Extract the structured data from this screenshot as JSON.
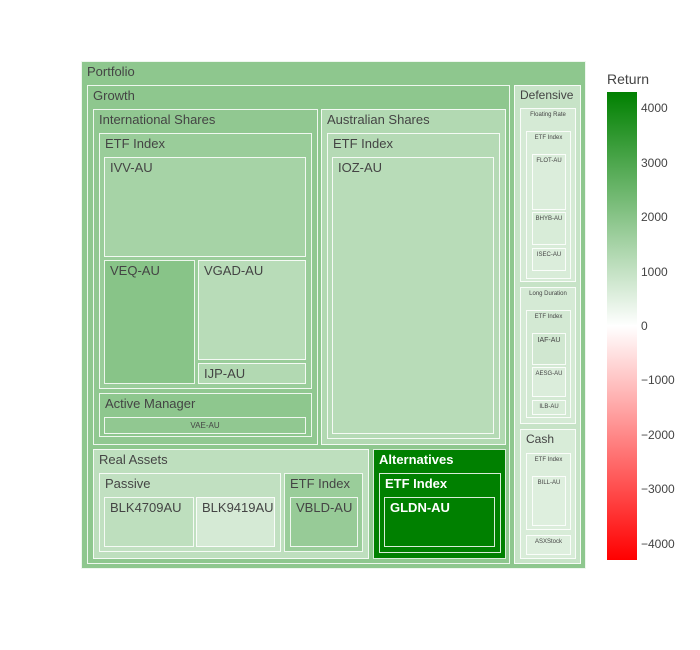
{
  "chart_data": {
    "type": "treemap",
    "colorbar": {
      "title": "Return",
      "range": [
        -4300,
        4300
      ],
      "ticks": [
        "4000",
        "3000",
        "2000",
        "1000",
        "0",
        "−1000",
        "−2000",
        "−3000",
        "−4000"
      ],
      "tick_values": [
        4000,
        3000,
        2000,
        1000,
        0,
        -1000,
        -2000,
        -3000,
        -4000
      ],
      "colors": {
        "high": "#008000",
        "mid": "#ffffff",
        "low": "#ff0000"
      }
    },
    "tree": {
      "label": "Portfolio",
      "return": 1900,
      "children": [
        {
          "label": "Growth",
          "return": 1900,
          "children": [
            {
              "label": "International Shares",
              "return": 1850,
              "children": [
                {
                  "label": "ETF Index",
                  "return": 1700,
                  "children": [
                    {
                      "label": "IVV-AU",
                      "return": 1500
                    },
                    {
                      "label": "VEQ-AU",
                      "return": 2000
                    },
                    {
                      "label": "VGAD-AU",
                      "return": 1200
                    },
                    {
                      "label": "IJP-AU",
                      "return": 1300
                    }
                  ]
                },
                {
                  "label": "Active Manager",
                  "return": 1900,
                  "children": [
                    {
                      "label": "VAE-AU",
                      "return": 1850
                    }
                  ]
                }
              ]
            },
            {
              "label": "Australian Shares",
              "return": 1300,
              "children": [
                {
                  "label": "ETF Index",
                  "return": 1250,
                  "children": [
                    {
                      "label": "IOZ-AU",
                      "return": 1200
                    }
                  ]
                }
              ]
            },
            {
              "label": "Real Assets",
              "return": 1100,
              "children": [
                {
                  "label": "Passive",
                  "return": 1050,
                  "children": [
                    {
                      "label": "BLK4709AU",
                      "return": 1100
                    },
                    {
                      "label": "BLK9419AU",
                      "return": 700
                    }
                  ]
                },
                {
                  "label": "ETF Index",
                  "return": 1700,
                  "children": [
                    {
                      "label": "VBLD-AU",
                      "return": 1750
                    }
                  ]
                }
              ]
            },
            {
              "label": "Alternatives",
              "return": 4300,
              "children": [
                {
                  "label": "ETF Index",
                  "return": 4300,
                  "children": [
                    {
                      "label": "GLDN-AU",
                      "return": 4300
                    }
                  ]
                }
              ]
            }
          ]
        },
        {
          "label": "Defensive",
          "return": 950,
          "children": [
            {
              "label": "Floating Rate",
              "return": 700,
              "children": [
                {
                  "label": "ETF Index",
                  "return": 650,
                  "children": [
                    {
                      "label": "FLOT-AU",
                      "return": 600
                    },
                    {
                      "label": "BHYB-AU",
                      "return": 650
                    },
                    {
                      "label": "ISEC-AU",
                      "return": 600
                    }
                  ]
                }
              ]
            },
            {
              "label": "Long Duration",
              "return": 700,
              "children": [
                {
                  "label": "ETF Index",
                  "return": 750,
                  "children": [
                    {
                      "label": "IAF-AU",
                      "return": 800
                    },
                    {
                      "label": "AESG-AU",
                      "return": 600
                    },
                    {
                      "label": "ILB-AU",
                      "return": 650
                    }
                  ]
                }
              ]
            },
            {
              "label": "Cash",
              "return": 650,
              "children": [
                {
                  "label": "ETF Index",
                  "return": 600,
                  "children": [
                    {
                      "label": "BILL-AU",
                      "return": 550
                    }
                  ]
                },
                {
                  "label": "ASXStock",
                  "return": 550
                }
              ]
            }
          ]
        }
      ]
    }
  }
}
